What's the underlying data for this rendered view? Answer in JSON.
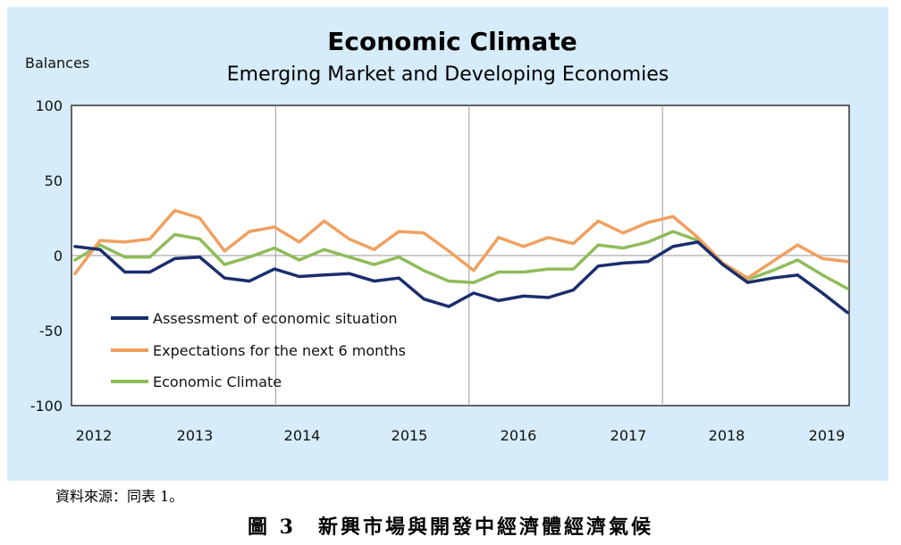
{
  "chart_data": {
    "type": "line",
    "title": "Economic Climate",
    "subtitle": "Emerging Market and Developing Economies",
    "ylabel": "Balances",
    "ylim": [
      -100,
      100
    ],
    "yticks": [
      100,
      50,
      0,
      -50,
      -100
    ],
    "x_tick_labels": [
      "2012",
      "2013",
      "2014",
      "2015",
      "2016",
      "2017",
      "2018",
      "2019"
    ],
    "grid": "vertical lines at year boundaries, horizontal line at 0",
    "legend_position": "bottom-left inside plot",
    "x": [
      "2012Q1",
      "2012Q2",
      "2012Q3",
      "2012Q4",
      "2013Q1",
      "2013Q2",
      "2013Q3",
      "2013Q4",
      "2014Q1",
      "2014Q2",
      "2014Q3",
      "2014Q4",
      "2015Q1",
      "2015Q2",
      "2015Q3",
      "2015Q4",
      "2016Q1",
      "2016Q2",
      "2016Q3",
      "2016Q4",
      "2017Q1",
      "2017Q2",
      "2017Q3",
      "2017Q4",
      "2018Q1",
      "2018Q2",
      "2018Q3",
      "2018Q4",
      "2019Q1",
      "2019Q2",
      "2019Q3",
      "2019Q4"
    ],
    "series": [
      {
        "name": "Assessment of  economic situation",
        "color": "#1a2e6e",
        "values": [
          6,
          4,
          -11,
          -11,
          -2,
          -1,
          -15,
          -17,
          -9,
          -14,
          -13,
          -12,
          -17,
          -15,
          -29,
          -34,
          -25,
          -30,
          -27,
          -28,
          -23,
          -7,
          -5,
          -4,
          6,
          9,
          -6,
          -18,
          -15,
          -13,
          -25,
          -38
        ]
      },
      {
        "name": "Expectations for the next 6 months",
        "color": "#f0a060",
        "values": [
          -12,
          10,
          9,
          11,
          30,
          25,
          3,
          16,
          19,
          9,
          23,
          11,
          4,
          16,
          15,
          3,
          -10,
          12,
          6,
          12,
          8,
          23,
          15,
          22,
          26,
          12,
          -5,
          -15,
          -4,
          7,
          -2,
          -4
        ]
      },
      {
        "name": "Economic Climate",
        "color": "#8fbc5a",
        "values": [
          -3,
          7,
          -1,
          -1,
          14,
          11,
          -6,
          -1,
          5,
          -3,
          4,
          -1,
          -6,
          -1,
          -10,
          -17,
          -18,
          -11,
          -11,
          -9,
          -9,
          7,
          5,
          9,
          16,
          10,
          -6,
          -16,
          -10,
          -3,
          -13,
          -22
        ]
      }
    ]
  },
  "source_note": "資料來源：同表 1。",
  "figure_caption": "圖 3　新興市場與開發中經濟體經濟氣候"
}
